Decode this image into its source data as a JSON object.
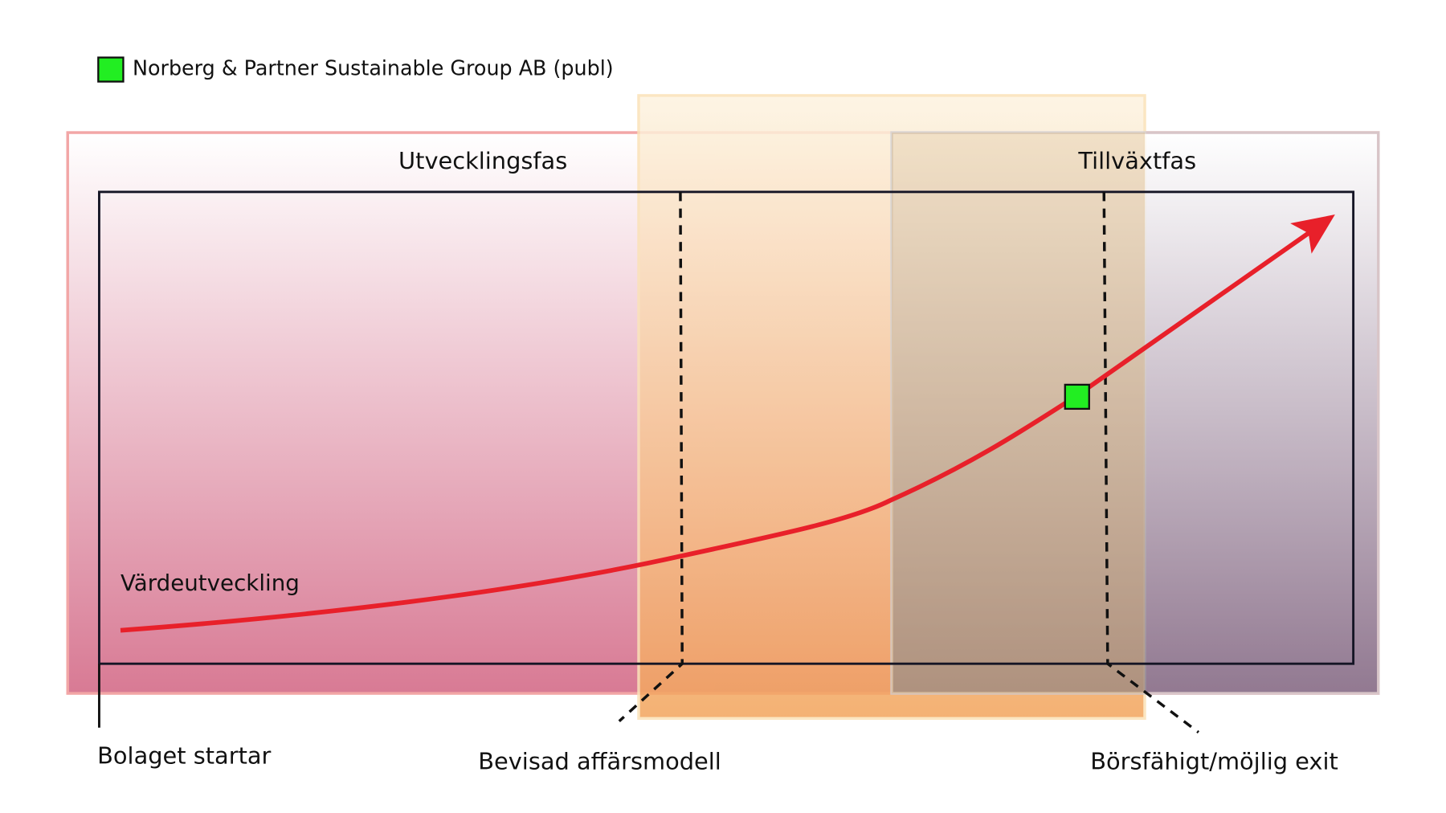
{
  "legend": {
    "label": "Norberg & Partner Sustainable Group AB (publ)"
  },
  "phases": [
    {
      "label": "Utvecklingsfas"
    },
    {
      "label": "Tillväxtfas"
    }
  ],
  "curve": {
    "label": "Värdeutveckling"
  },
  "milestones": [
    {
      "label": "Bolaget startar"
    },
    {
      "label": "Bevisad affärsmodell"
    },
    {
      "label": "Börsfähigt/möjlig exit"
    }
  ]
}
